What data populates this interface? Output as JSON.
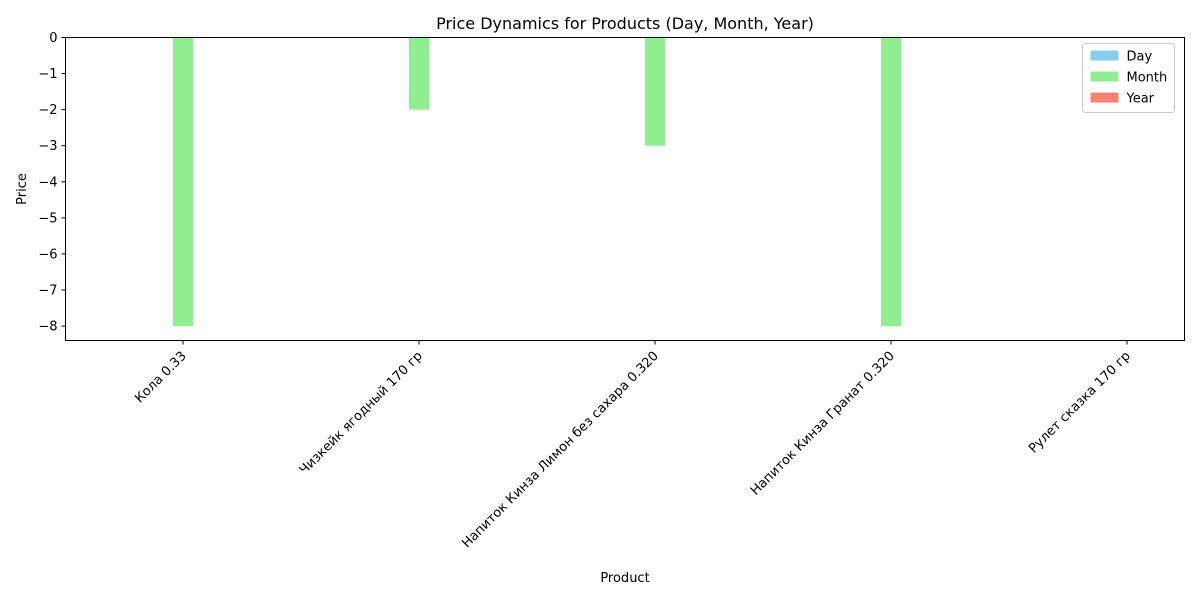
{
  "chart_data": {
    "type": "bar",
    "title": "Price Dynamics for Products (Day, Month, Year)",
    "xlabel": "Product",
    "ylabel": "Price",
    "ylim": [
      -8.4,
      0
    ],
    "yticks": [
      0,
      -1,
      -2,
      -3,
      -4,
      -5,
      -6,
      -7,
      -8
    ],
    "ytick_labels": [
      "0",
      "−1",
      "−2",
      "−3",
      "−4",
      "−5",
      "−6",
      "−7",
      "−8"
    ],
    "categories": [
      "Кола 0.33",
      "Чизкейк ягодный 170 гр",
      "Напиток Кинза Лимон без сахара 0.320",
      "Напиток Кинза Гранат 0.320",
      "Рулет сказка 170 гр"
    ],
    "series": [
      {
        "name": "Day",
        "color": "#87ceeb",
        "values": [
          0,
          0,
          0,
          0,
          0
        ]
      },
      {
        "name": "Month",
        "color": "#90ee90",
        "values": [
          -8,
          -2,
          -3,
          -8,
          0
        ]
      },
      {
        "name": "Year",
        "color": "#fa8072",
        "values": [
          0,
          0,
          0,
          0,
          0
        ]
      }
    ],
    "legend_position": "top-right",
    "grid": false
  }
}
